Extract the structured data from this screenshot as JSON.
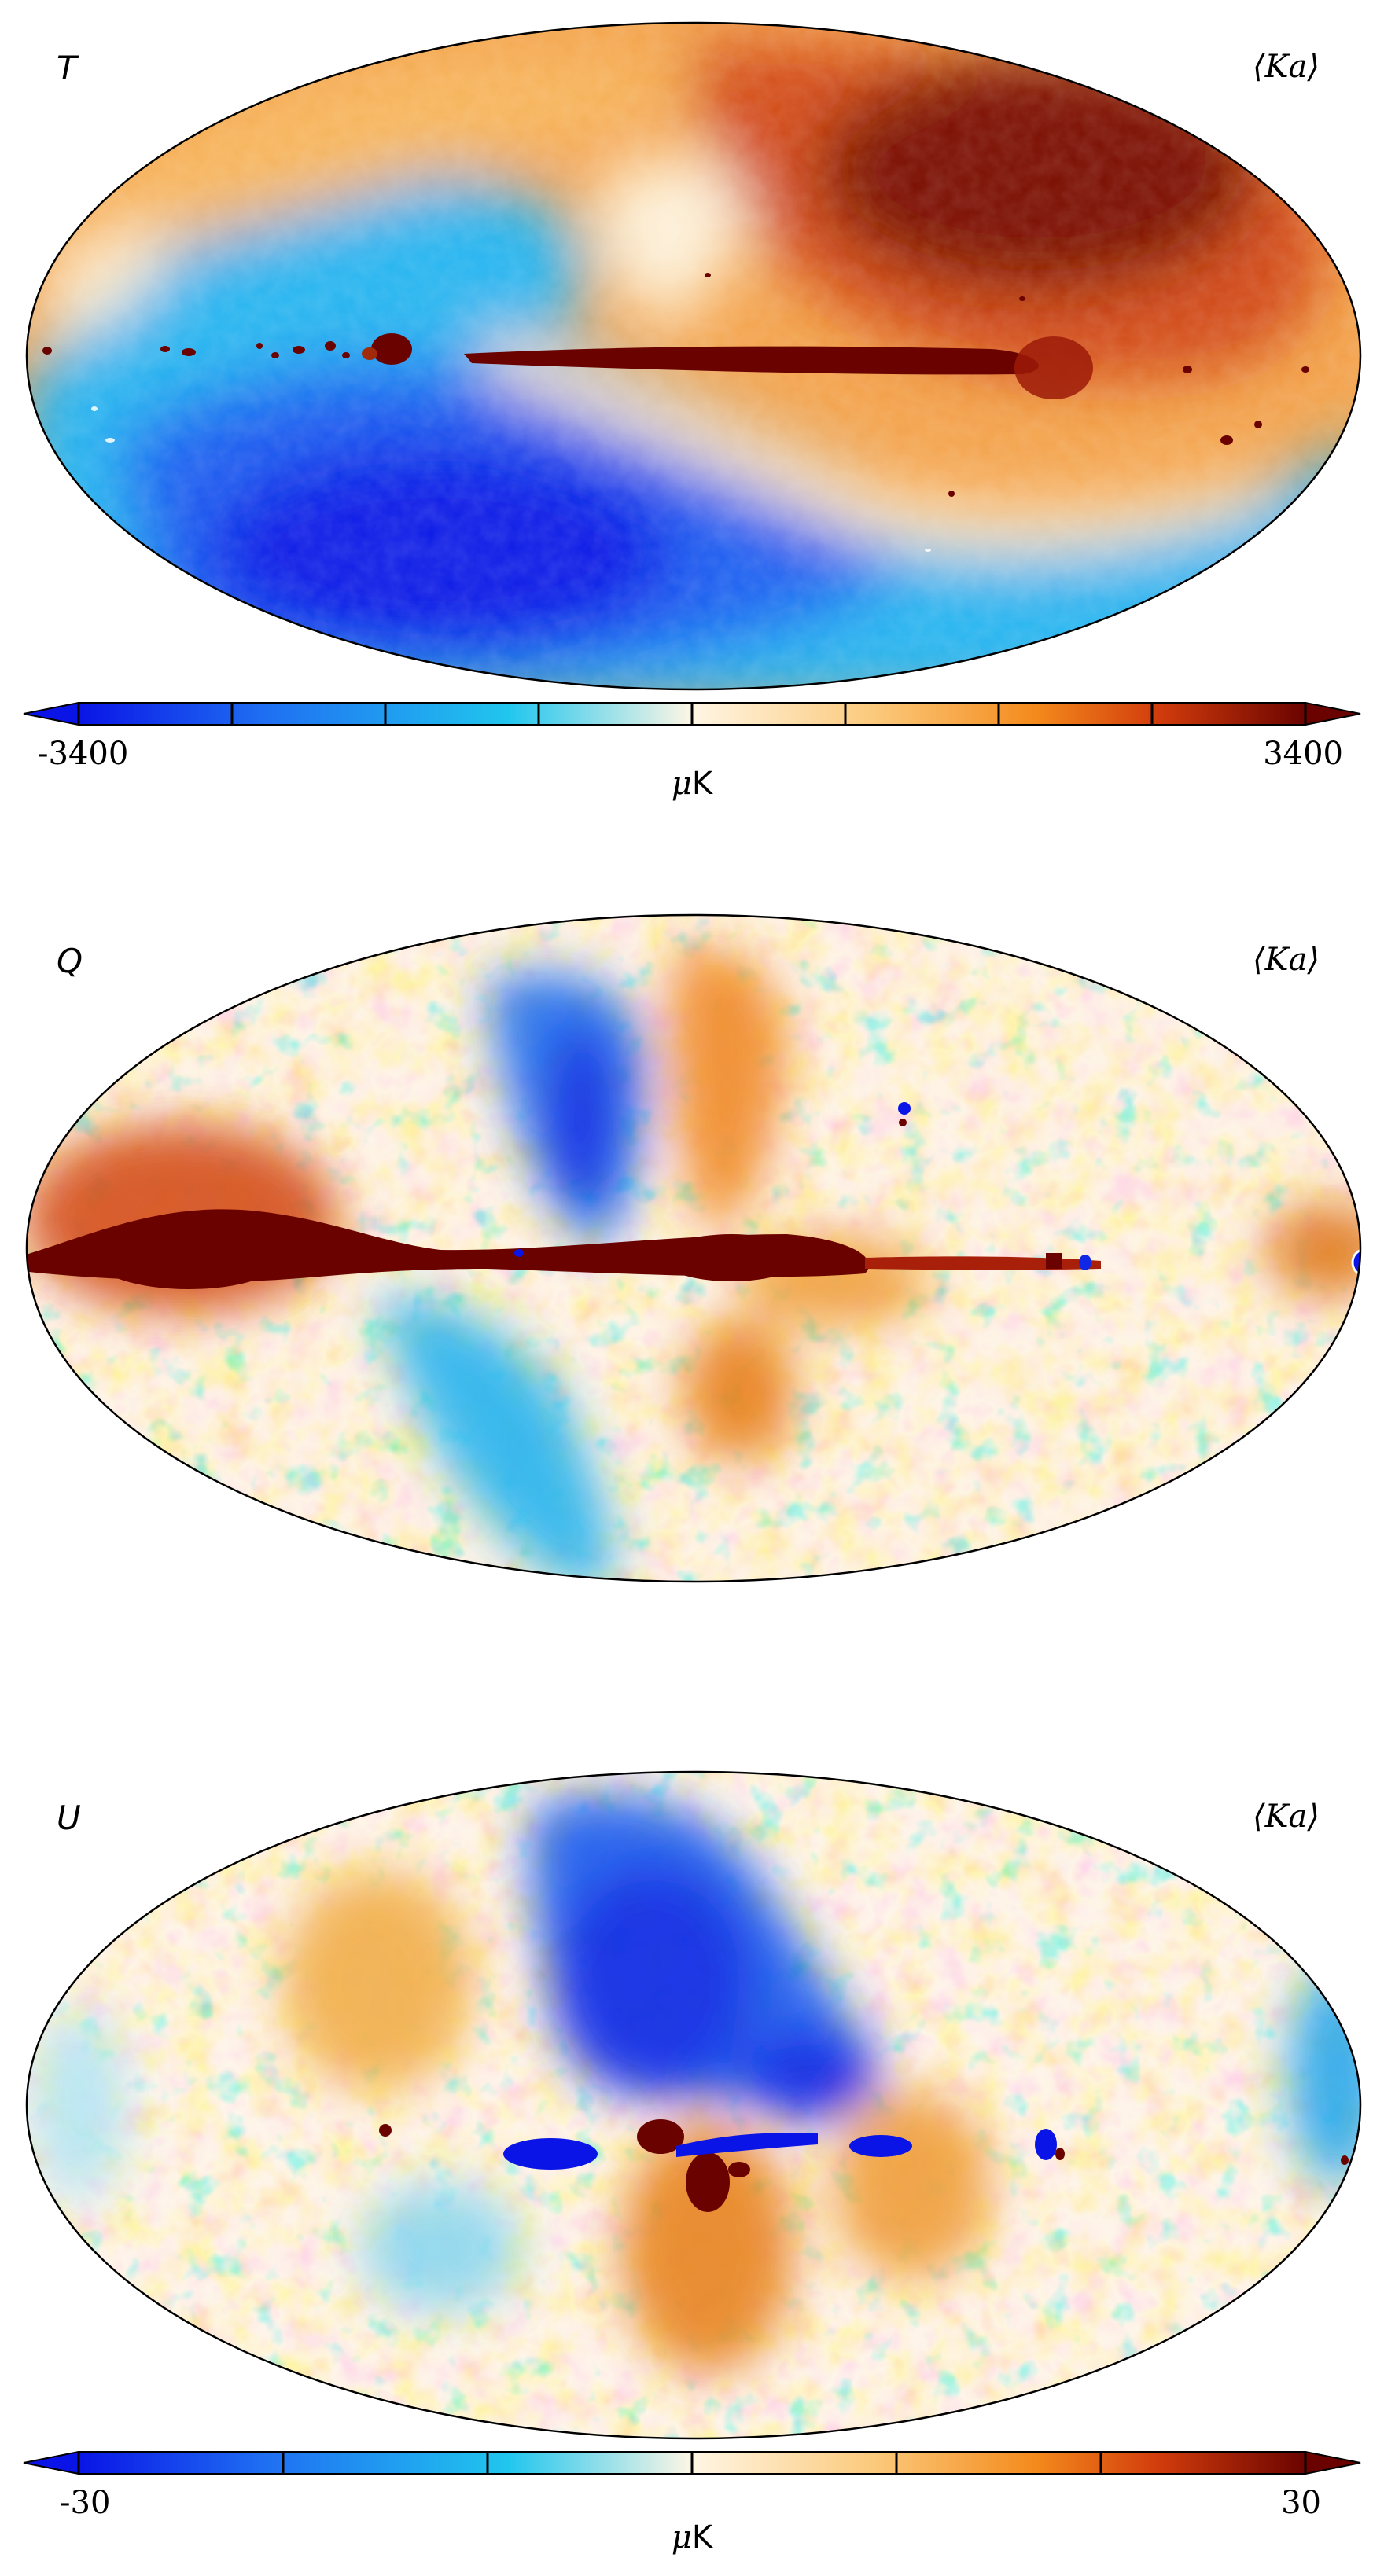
{
  "figure": {
    "panels": [
      {
        "stokes": "T",
        "band": "⟨Ka⟩",
        "colormap": "planck-diverging",
        "pattern": "temperature"
      },
      {
        "stokes": "Q",
        "band": "⟨Ka⟩",
        "colormap": "planck-diverging",
        "pattern": "polarization-q"
      },
      {
        "stokes": "U",
        "band": "⟨Ka⟩",
        "colormap": "planck-diverging",
        "pattern": "polarization-u"
      }
    ],
    "colorbars": [
      {
        "min_label": "-3400",
        "max_label": "3400",
        "unit_prefix": "μ",
        "unit": "K",
        "ticks": 8
      },
      {
        "min_label": "-30",
        "max_label": "30",
        "unit_prefix": "μ",
        "unit": "K",
        "ticks": 6
      }
    ],
    "colors": {
      "deep_blue": "#0a14e6",
      "blue": "#1f6ef2",
      "light_blue": "#21c6ee",
      "white": "#fff6e4",
      "light_orange": "#fbc97a",
      "orange": "#f48a1c",
      "red": "#d23c0c",
      "dark_red": "#6a0300"
    }
  }
}
